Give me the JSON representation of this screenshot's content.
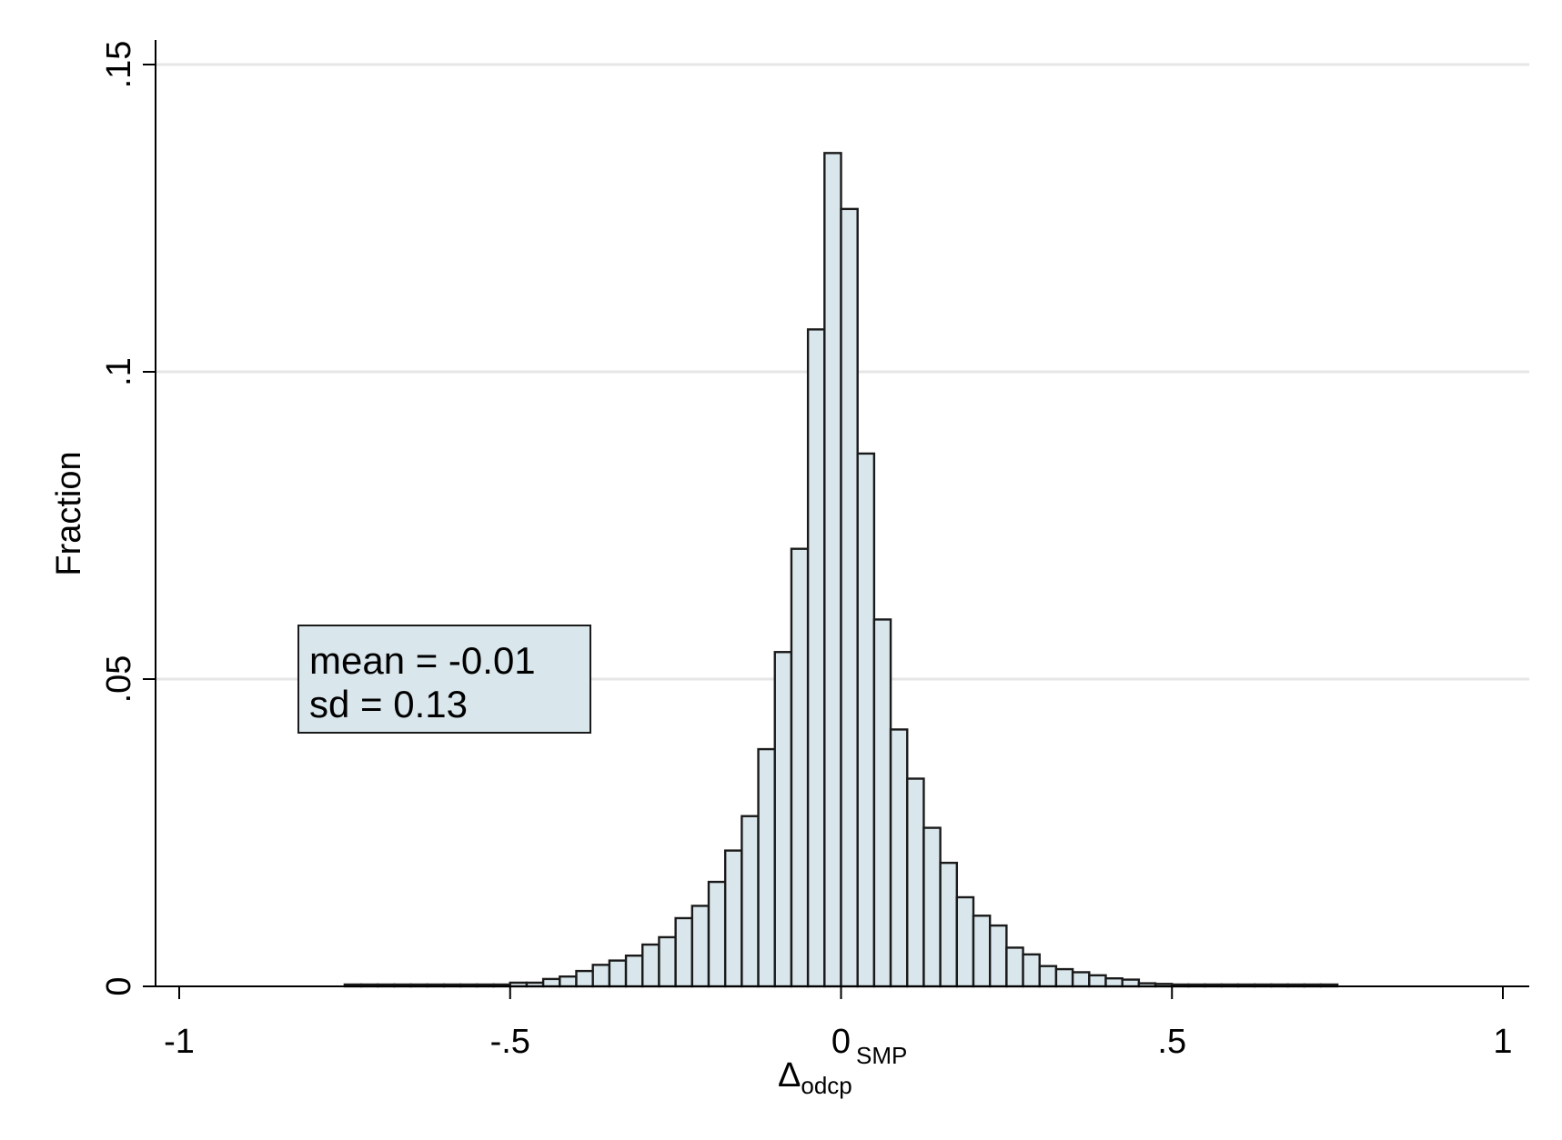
{
  "chart_data": {
    "type": "bar",
    "subtype": "histogram",
    "ylabel": "Fraction",
    "xlabel": {
      "symbol": "Δ",
      "subscript": "odcp",
      "superscript": "SMP"
    },
    "xlim": [
      -1,
      1
    ],
    "ylim": [
      0,
      0.15
    ],
    "x_ticks": [
      {
        "value": -1,
        "label": "-1"
      },
      {
        "value": -0.5,
        "label": "-.5"
      },
      {
        "value": 0,
        "label": "0"
      },
      {
        "value": 0.5,
        "label": ".5"
      },
      {
        "value": 1,
        "label": "1"
      }
    ],
    "y_ticks": [
      {
        "value": 0,
        "label": "0"
      },
      {
        "value": 0.05,
        "label": ".05"
      },
      {
        "value": 0.1,
        "label": ".1"
      },
      {
        "value": 0.15,
        "label": ".15"
      }
    ],
    "grid": "horizontal",
    "bin_width": 0.025,
    "bin_start": -0.75,
    "values": [
      0.0003,
      0.0003,
      0.0003,
      0.0003,
      0.0003,
      0.0003,
      0.0003,
      0.0003,
      0.0003,
      0.0003,
      0.0006,
      0.0006,
      0.0012,
      0.0016,
      0.0025,
      0.0035,
      0.0042,
      0.005,
      0.0068,
      0.008,
      0.0111,
      0.0131,
      0.017,
      0.0221,
      0.0277,
      0.0386,
      0.0544,
      0.0712,
      0.1069,
      0.1356,
      0.1265,
      0.0867,
      0.0597,
      0.0418,
      0.0338,
      0.0258,
      0.0201,
      0.0145,
      0.0115,
      0.0099,
      0.0063,
      0.0052,
      0.0033,
      0.0028,
      0.0023,
      0.0018,
      0.0013,
      0.0011,
      0.0005,
      0.0004,
      0.0003,
      0.0003,
      0.0003,
      0.0003,
      0.0003,
      0.0003,
      0.0003,
      0.0003,
      0.0003,
      0.0003
    ],
    "annotation": {
      "lines": [
        "mean = -0.01",
        "sd = 0.13"
      ]
    },
    "colors": {
      "bar_fill": "#d9e6eb",
      "bar_stroke": "#1a1a1a",
      "annotation_fill": "#d9e6eb",
      "grid": "#e6e6e6"
    }
  }
}
